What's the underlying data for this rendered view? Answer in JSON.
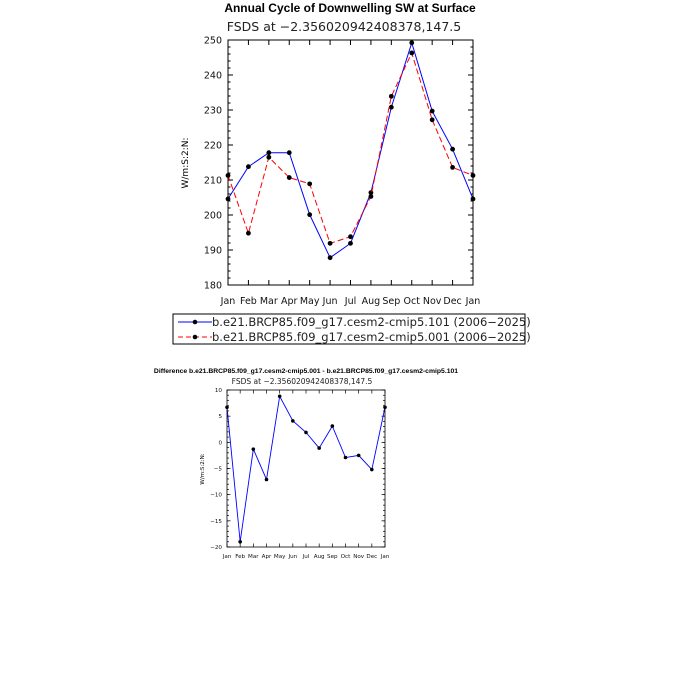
{
  "chart_data": [
    {
      "type": "line",
      "title": "Annual Cycle of Downwelling SW at Surface",
      "subtitle": "FSDS at -2.356020942408378,147.5",
      "xlabel": "",
      "ylabel": "W/m:S:2:N:",
      "ylim": [
        180,
        250
      ],
      "yticks": [
        180,
        190,
        200,
        210,
        220,
        230,
        240,
        250
      ],
      "categories": [
        "Jan",
        "Feb",
        "Mar",
        "Apr",
        "May",
        "Jun",
        "Jul",
        "Aug",
        "Sep",
        "Oct",
        "Nov",
        "Dec",
        "Jan"
      ],
      "grid": false,
      "legend_position": "bottom",
      "series": [
        {
          "name": "b.e21.BRCP85.f09_g17.cesm2-cmip5.101 (2006-2025)",
          "color": "#0000ff",
          "dash": "solid",
          "values": [
            204.6,
            213.8,
            217.8,
            217.8,
            200.1,
            187.8,
            191.9,
            206.4,
            230.8,
            249.2,
            229.7,
            218.8,
            204.6
          ]
        },
        {
          "name": "b.e21.BRCP85.f09_g17.cesm2-cmip5.001 (2006-2025)",
          "color": "#ff0000",
          "dash": "dashed",
          "values": [
            211.3,
            194.8,
            216.5,
            210.7,
            208.9,
            191.9,
            193.8,
            205.3,
            233.9,
            246.3,
            227.2,
            213.6,
            211.3
          ]
        }
      ]
    },
    {
      "type": "line",
      "title": "Difference b.e21.BRCP85.f09_g17.cesm2-cmip5.001 - b.e21.BRCP85.f09_g17.cesm2-cmip5.101",
      "subtitle": "FSDS at -2.356020942408378,147.5",
      "xlabel": "",
      "ylabel": "W/m:S:2:N:",
      "ylim": [
        -20,
        10
      ],
      "yticks": [
        -20,
        -15,
        -10,
        -5,
        0,
        5,
        10
      ],
      "categories": [
        "Jan",
        "Feb",
        "Mar",
        "Apr",
        "May",
        "Jun",
        "Jul",
        "Aug",
        "Sep",
        "Oct",
        "Nov",
        "Dec",
        "Jan"
      ],
      "grid": false,
      "series": [
        {
          "name": "",
          "color": "#0000ff",
          "dash": "solid",
          "values": [
            6.7,
            -19.0,
            -1.3,
            -7.1,
            8.8,
            4.1,
            1.9,
            -1.1,
            3.1,
            -2.9,
            -2.5,
            -5.2,
            6.7
          ]
        }
      ]
    }
  ]
}
